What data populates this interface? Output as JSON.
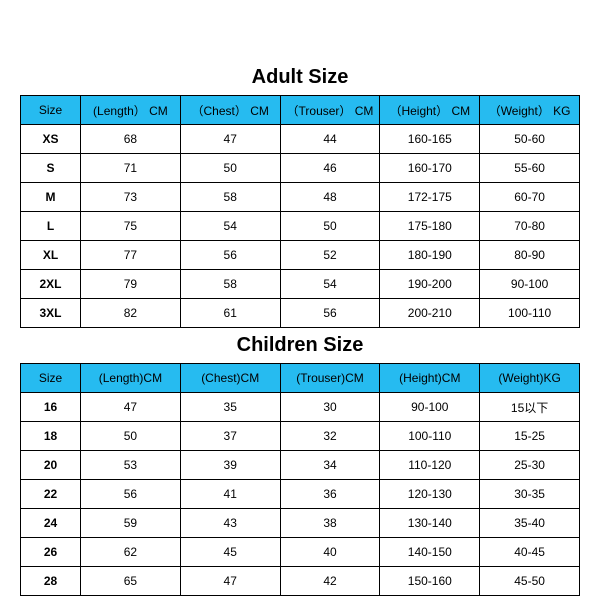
{
  "colors": {
    "header_bg": "#26bbf0",
    "border": "#000000",
    "text": "#000000",
    "background": "#ffffff"
  },
  "typography": {
    "title_fontsize": 20,
    "title_weight": "bold",
    "cell_fontsize": 12
  },
  "adult": {
    "title": "Adult Size",
    "columns": [
      "Size",
      "(Length） CM",
      "（Chest） CM",
      "（Trouser） CM",
      "（Height） CM",
      "（Weight） KG"
    ],
    "rows": [
      [
        "XS",
        "68",
        "47",
        "44",
        "160-165",
        "50-60"
      ],
      [
        "S",
        "71",
        "50",
        "46",
        "160-170",
        "55-60"
      ],
      [
        "M",
        "73",
        "58",
        "48",
        "172-175",
        "60-70"
      ],
      [
        "L",
        "75",
        "54",
        "50",
        "175-180",
        "70-80"
      ],
      [
        "XL",
        "77",
        "56",
        "52",
        "180-190",
        "80-90"
      ],
      [
        "2XL",
        "79",
        "58",
        "54",
        "190-200",
        "90-100"
      ],
      [
        "3XL",
        "82",
        "61",
        "56",
        "200-210",
        "100-110"
      ]
    ]
  },
  "children": {
    "title": "Children Size",
    "columns": [
      "Size",
      "(Length)CM",
      "(Chest)CM",
      "(Trouser)CM",
      "(Height)CM",
      "(Weight)KG"
    ],
    "rows": [
      [
        "16",
        "47",
        "35",
        "30",
        "90-100",
        "15以下"
      ],
      [
        "18",
        "50",
        "37",
        "32",
        "100-110",
        "15-25"
      ],
      [
        "20",
        "53",
        "39",
        "34",
        "110-120",
        "25-30"
      ],
      [
        "22",
        "56",
        "41",
        "36",
        "120-130",
        "30-35"
      ],
      [
        "24",
        "59",
        "43",
        "38",
        "130-140",
        "35-40"
      ],
      [
        "26",
        "62",
        "45",
        "40",
        "140-150",
        "40-45"
      ],
      [
        "28",
        "65",
        "47",
        "42",
        "150-160",
        "45-50"
      ]
    ]
  }
}
